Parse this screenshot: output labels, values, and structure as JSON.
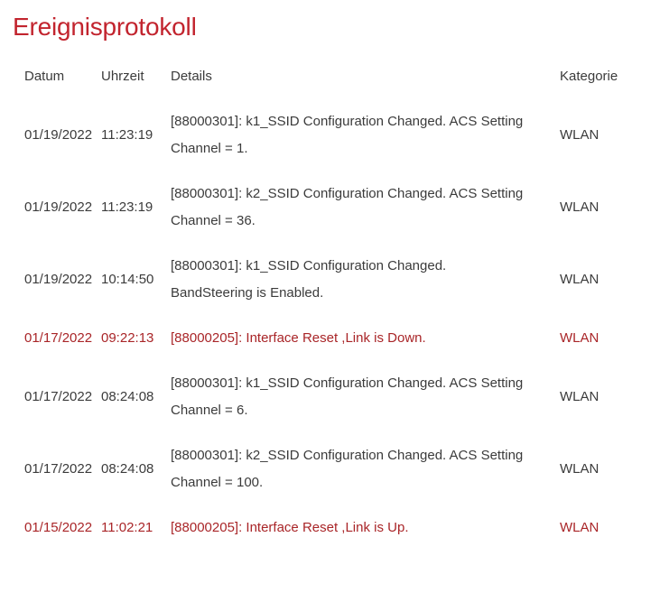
{
  "page": {
    "title": "Ereignisprotokoll"
  },
  "colors": {
    "title": "#c2242e",
    "error": "#a92528",
    "text": "#3b3b3b"
  },
  "table": {
    "headers": {
      "date": "Datum",
      "time": "Uhrzeit",
      "details": "Details",
      "category": "Kategorie"
    },
    "rows": [
      {
        "date": "01/19/2022",
        "time": "11:23:19",
        "details_lines": [
          "[88000301]: k1_SSID Configuration Changed. ACS Setting",
          "Channel = 1."
        ],
        "category": "WLAN",
        "severity": "normal"
      },
      {
        "date": "01/19/2022",
        "time": "11:23:19",
        "details_lines": [
          "[88000301]: k2_SSID Configuration Changed. ACS Setting",
          "Channel = 36."
        ],
        "category": "WLAN",
        "severity": "normal"
      },
      {
        "date": "01/19/2022",
        "time": "10:14:50",
        "details_lines": [
          "[88000301]: k1_SSID Configuration Changed.",
          "BandSteering is Enabled."
        ],
        "category": "WLAN",
        "severity": "normal"
      },
      {
        "date": "01/17/2022",
        "time": "09:22:13",
        "details_lines": [
          "[88000205]: Interface Reset ,Link is Down."
        ],
        "category": "WLAN",
        "severity": "error"
      },
      {
        "date": "01/17/2022",
        "time": "08:24:08",
        "details_lines": [
          "[88000301]: k1_SSID Configuration Changed. ACS Setting",
          "Channel = 6."
        ],
        "category": "WLAN",
        "severity": "normal"
      },
      {
        "date": "01/17/2022",
        "time": "08:24:08",
        "details_lines": [
          "[88000301]: k2_SSID Configuration Changed. ACS Setting",
          "Channel = 100."
        ],
        "category": "WLAN",
        "severity": "normal"
      },
      {
        "date": "01/15/2022",
        "time": "11:02:21",
        "details_lines": [
          "[88000205]: Interface Reset ,Link is Up."
        ],
        "category": "WLAN",
        "severity": "error"
      }
    ]
  }
}
